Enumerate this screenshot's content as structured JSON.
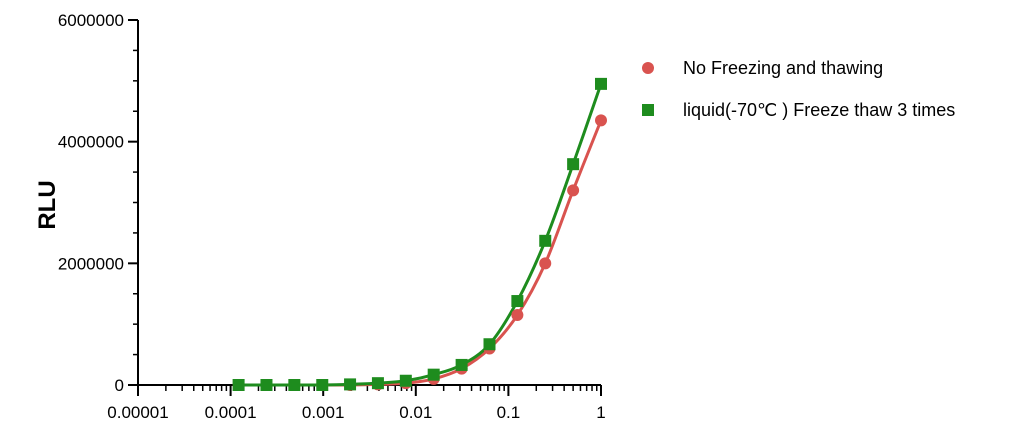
{
  "chart_data": {
    "type": "scatter",
    "title": "",
    "xlabel": "",
    "ylabel": "RLU",
    "xscale": "log",
    "xlim": [
      1e-05,
      1
    ],
    "ylim": [
      0,
      6000000
    ],
    "x_ticks": [
      1e-05,
      0.0001,
      0.001,
      0.01,
      0.1,
      1
    ],
    "x_tick_labels": [
      "0.00001",
      "0.0001",
      "0.001",
      "0.01",
      "0.1",
      "1"
    ],
    "y_ticks": [
      0,
      2000000,
      4000000,
      6000000
    ],
    "y_tick_labels": [
      "0",
      "2000000",
      "4000000",
      "6000000"
    ],
    "grid": false,
    "legend_position": "right",
    "fit_lines": true,
    "series": [
      {
        "name": "No Freezing and thawing",
        "color": "#d9534f",
        "marker": "circle",
        "x": [
          0.000122,
          0.000244,
          0.000488,
          0.000977,
          0.00195,
          0.0039,
          0.0078,
          0.0156,
          0.03125,
          0.0625,
          0.125,
          0.25,
          0.5,
          1
        ],
        "y": [
          0,
          0,
          0,
          0,
          0,
          10000,
          30000,
          100000,
          270000,
          600000,
          1150000,
          2000000,
          3200000,
          4350000
        ]
      },
      {
        "name": "liquid(-70℃ ) Freeze thaw 3 times",
        "color": "#1e8c1e",
        "marker": "square",
        "x": [
          0.000122,
          0.000244,
          0.000488,
          0.000977,
          0.00195,
          0.0039,
          0.0078,
          0.0156,
          0.03125,
          0.0625,
          0.125,
          0.25,
          0.5,
          1
        ],
        "y": [
          0,
          0,
          0,
          0,
          10000,
          30000,
          70000,
          170000,
          330000,
          670000,
          1380000,
          2370000,
          3630000,
          4950000
        ]
      }
    ]
  }
}
